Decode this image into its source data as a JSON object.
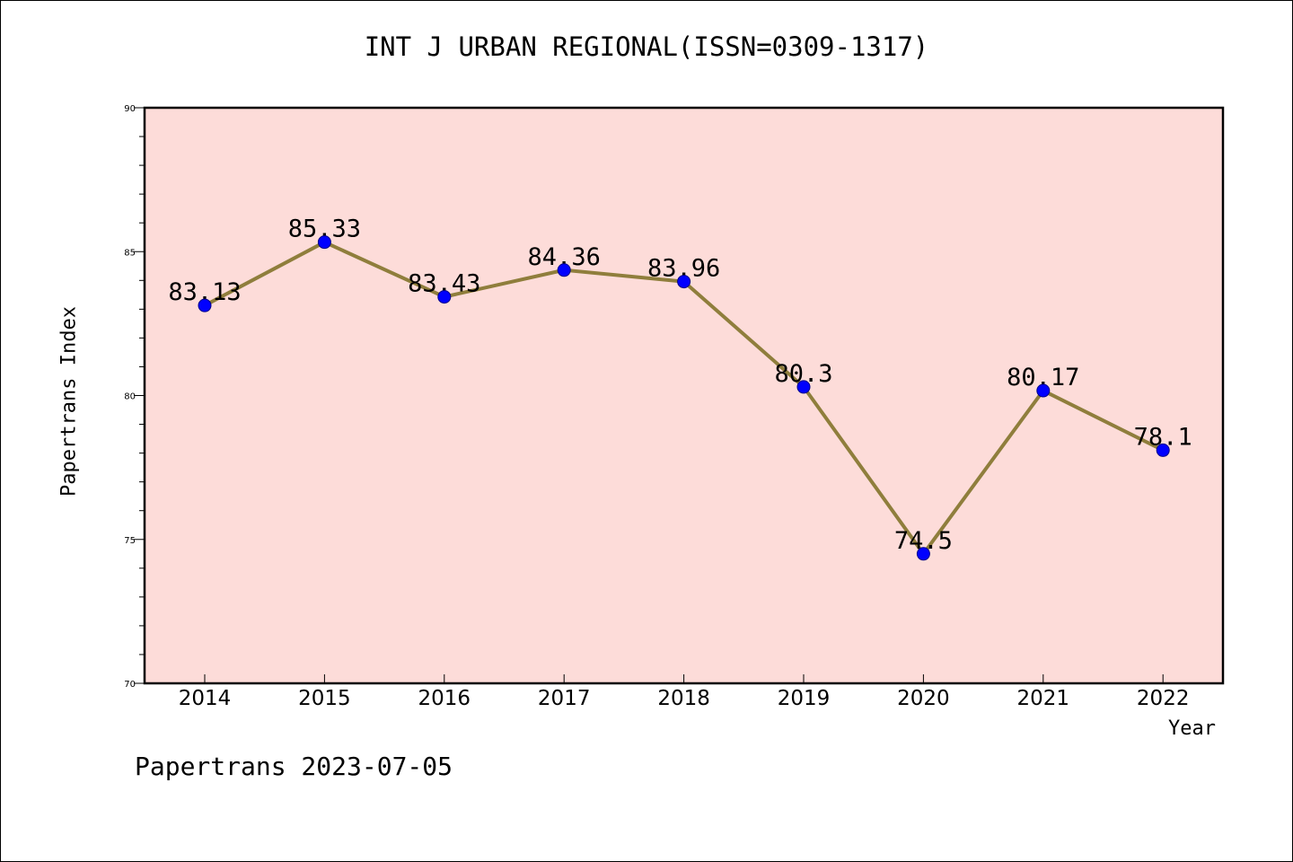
{
  "chart_data": {
    "type": "line",
    "title": "INT J URBAN REGIONAL(ISSN=0309-1317)",
    "xlabel": "Year",
    "ylabel": "Papertrans Index",
    "categories": [
      "2014",
      "2015",
      "2016",
      "2017",
      "2018",
      "2019",
      "2020",
      "2021",
      "2022"
    ],
    "values": [
      83.13,
      85.33,
      83.43,
      84.36,
      83.96,
      80.3,
      74.5,
      80.17,
      78.1
    ],
    "data_labels": [
      "83.13",
      "85.33",
      "83.43",
      "84.36",
      "83.96",
      "80.3",
      "74.5",
      "80.17",
      "78.1"
    ],
    "ylim": [
      70,
      90
    ],
    "yticks": [
      "70",
      "75",
      "80",
      "85",
      "90"
    ],
    "grid": false,
    "colors": {
      "plot_background": "#fddcd9",
      "line": "#8f7e3c",
      "marker": "#0000ff"
    }
  },
  "footer": "Papertrans 2023-07-05"
}
